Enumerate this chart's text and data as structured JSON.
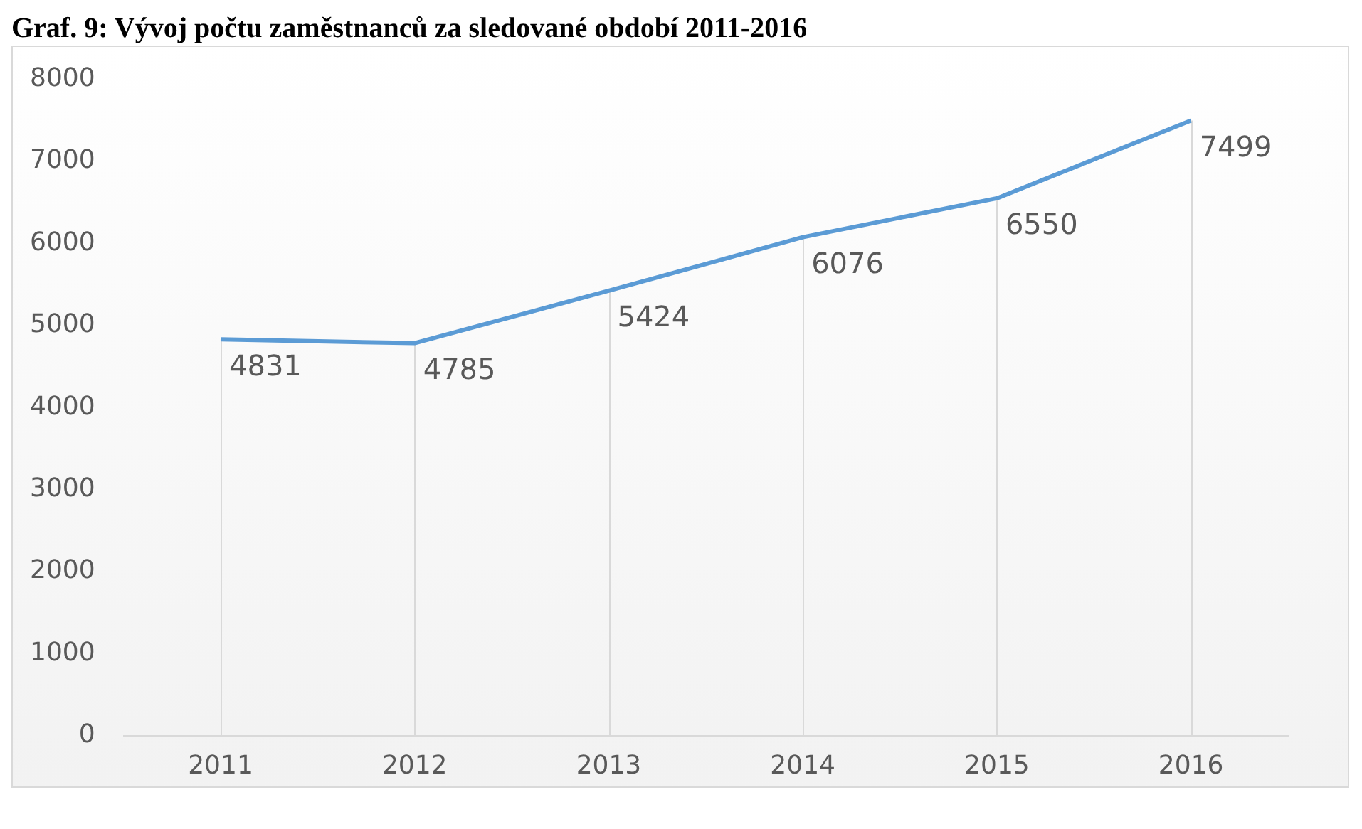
{
  "chart_data": {
    "type": "line",
    "title": "Graf. 9: Vývoj počtu zaměstnanců za sledované období 2011-2016",
    "categories": [
      "2011",
      "2012",
      "2013",
      "2014",
      "2015",
      "2016"
    ],
    "series": [
      {
        "color": "#5b9bd5",
        "values": [
          4831,
          4785,
          5424,
          6076,
          6550,
          7499
        ]
      }
    ],
    "ylim": [
      0,
      8000
    ],
    "yticks": [
      0,
      1000,
      2000,
      3000,
      4000,
      5000,
      6000,
      7000,
      8000
    ],
    "grid": "x",
    "data_labels": true,
    "legend": false,
    "marker": "none"
  }
}
